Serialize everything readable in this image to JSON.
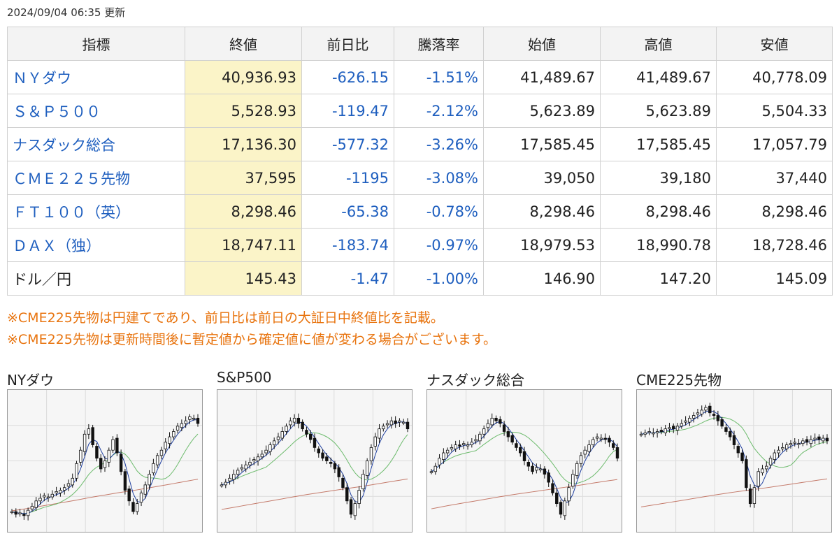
{
  "updated": "2024/09/04 06:35 更新",
  "headers": [
    "指標",
    "終値",
    "前日比",
    "騰落率",
    "始値",
    "高値",
    "安値"
  ],
  "rows": [
    {
      "name": "ＮＹダウ",
      "link": true,
      "close": "40,936.93",
      "change": "-626.15",
      "rate": "-1.51%",
      "open": "41,489.67",
      "high": "41,489.67",
      "low": "40,778.09"
    },
    {
      "name": "Ｓ＆Ｐ５００",
      "link": true,
      "close": "5,528.93",
      "change": "-119.47",
      "rate": "-2.12%",
      "open": "5,623.89",
      "high": "5,623.89",
      "low": "5,504.33"
    },
    {
      "name": "ナスダック総合",
      "link": true,
      "close": "17,136.30",
      "change": "-577.32",
      "rate": "-3.26%",
      "open": "17,585.45",
      "high": "17,585.45",
      "low": "17,057.79"
    },
    {
      "name": "ＣＭＥ２２５先物",
      "link": true,
      "close": "37,595",
      "change": "-1195",
      "rate": "-3.08%",
      "open": "39,050",
      "high": "39,180",
      "low": "37,440"
    },
    {
      "name": "ＦＴ１００（英）",
      "link": true,
      "close": "8,298.46",
      "change": "-65.38",
      "rate": "-0.78%",
      "open": "8,298.46",
      "high": "8,298.46",
      "low": "8,298.46"
    },
    {
      "name": "ＤＡＸ（独）",
      "link": true,
      "close": "18,747.11",
      "change": "-183.74",
      "rate": "-0.97%",
      "open": "18,979.53",
      "high": "18,990.78",
      "low": "18,728.46"
    },
    {
      "name": "ドル／円",
      "link": false,
      "close": "145.43",
      "change": "-1.47",
      "rate": "-1.00%",
      "open": "146.90",
      "high": "147.20",
      "low": "145.09"
    }
  ],
  "notes": [
    "※CME225先物は円建てであり、前日比は前日の大証日中終値比を記載。",
    "※CME225先物は更新時間後に暫定値から確定値に値が変わる場合がございます。"
  ],
  "charts": [
    {
      "title": "NYダウ",
      "closes": [
        0.12,
        0.1,
        0.11,
        0.09,
        0.13,
        0.16,
        0.2,
        0.22,
        0.24,
        0.23,
        0.25,
        0.27,
        0.28,
        0.3,
        0.33,
        0.37,
        0.48,
        0.58,
        0.7,
        0.74,
        0.62,
        0.52,
        0.44,
        0.5,
        0.58,
        0.66,
        0.56,
        0.42,
        0.28,
        0.2,
        0.12,
        0.18,
        0.26,
        0.32,
        0.4,
        0.48,
        0.54,
        0.58,
        0.64,
        0.68,
        0.72,
        0.76,
        0.78,
        0.8,
        0.83,
        0.82,
        0.78
      ]
    },
    {
      "title": "S&P500",
      "closes": [
        0.32,
        0.34,
        0.37,
        0.4,
        0.43,
        0.45,
        0.47,
        0.49,
        0.51,
        0.53,
        0.55,
        0.58,
        0.62,
        0.65,
        0.68,
        0.72,
        0.76,
        0.8,
        0.82,
        0.78,
        0.74,
        0.7,
        0.66,
        0.6,
        0.56,
        0.52,
        0.5,
        0.48,
        0.44,
        0.38,
        0.3,
        0.2,
        0.1,
        0.18,
        0.28,
        0.4,
        0.5,
        0.6,
        0.68,
        0.74,
        0.76,
        0.78,
        0.8,
        0.78,
        0.8,
        0.79,
        0.74
      ]
    },
    {
      "title": "ナスダック総合",
      "closes": [
        0.42,
        0.46,
        0.52,
        0.56,
        0.58,
        0.6,
        0.62,
        0.61,
        0.63,
        0.62,
        0.64,
        0.66,
        0.7,
        0.74,
        0.78,
        0.82,
        0.8,
        0.78,
        0.72,
        0.68,
        0.64,
        0.6,
        0.56,
        0.5,
        0.46,
        0.42,
        0.45,
        0.44,
        0.4,
        0.34,
        0.26,
        0.18,
        0.1,
        0.2,
        0.3,
        0.4,
        0.48,
        0.54,
        0.58,
        0.62,
        0.66,
        0.68,
        0.67,
        0.66,
        0.64,
        0.6,
        0.52
      ]
    },
    {
      "title": "CME225先物",
      "closes": [
        0.7,
        0.71,
        0.72,
        0.71,
        0.72,
        0.72,
        0.74,
        0.75,
        0.74,
        0.76,
        0.78,
        0.8,
        0.82,
        0.84,
        0.86,
        0.88,
        0.9,
        0.86,
        0.84,
        0.8,
        0.76,
        0.72,
        0.68,
        0.62,
        0.56,
        0.5,
        0.3,
        0.18,
        0.3,
        0.42,
        0.44,
        0.46,
        0.52,
        0.56,
        0.58,
        0.6,
        0.62,
        0.63,
        0.64,
        0.63,
        0.65,
        0.64,
        0.66,
        0.67,
        0.66,
        0.67,
        0.65
      ]
    }
  ]
}
